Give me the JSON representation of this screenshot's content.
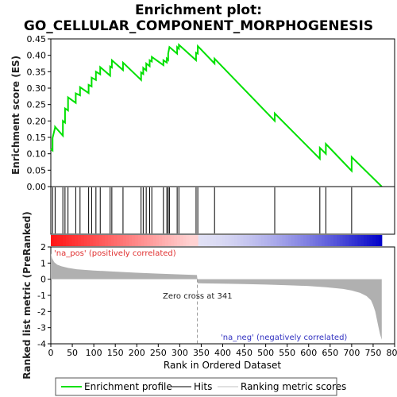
{
  "chart_data": {
    "type": "line",
    "title_line1": "Enrichment plot:",
    "title_line2": "GO_CELLULAR_COMPONENT_MORPHOGENESIS",
    "xlabel": "Rank in Ordered Dataset",
    "ylabel_top": "Enrichment score (ES)",
    "ylabel_bottom": "Ranked list metric (PreRanked)",
    "xlim": [
      0,
      800
    ],
    "es_ylim": [
      0,
      0.45
    ],
    "metric_ylim": [
      -4,
      2
    ],
    "x_ticks": [
      0,
      50,
      100,
      150,
      200,
      250,
      300,
      350,
      400,
      450,
      500,
      550,
      600,
      650,
      700,
      750,
      800
    ],
    "es_ticks": [
      "0.00",
      "0.05",
      "0.10",
      "0.15",
      "0.20",
      "0.25",
      "0.30",
      "0.35",
      "0.40",
      "0.45"
    ],
    "metric_ticks": [
      2,
      1,
      0,
      -1,
      -2,
      -3,
      -4
    ],
    "hits": [
      4,
      10,
      28,
      33,
      40,
      58,
      68,
      88,
      95,
      105,
      115,
      138,
      142,
      168,
      210,
      215,
      222,
      230,
      235,
      262,
      270,
      273,
      276,
      294,
      298,
      338,
      342,
      381,
      521,
      626,
      640,
      700
    ],
    "es_curve": {
      "x": [
        0,
        4,
        4,
        10,
        10,
        28,
        28,
        33,
        33,
        40,
        40,
        58,
        58,
        68,
        68,
        88,
        88,
        95,
        95,
        105,
        105,
        115,
        115,
        138,
        138,
        142,
        142,
        168,
        168,
        210,
        210,
        215,
        215,
        222,
        222,
        230,
        230,
        235,
        235,
        262,
        262,
        270,
        270,
        273,
        273,
        276,
        276,
        294,
        294,
        298,
        298,
        338,
        338,
        342,
        342,
        381,
        381,
        521,
        521,
        626,
        626,
        640,
        640,
        700,
        700,
        770
      ],
      "y": [
        0.115,
        0.11,
        0.148,
        0.18,
        0.182,
        0.155,
        0.2,
        0.195,
        0.238,
        0.232,
        0.272,
        0.255,
        0.284,
        0.278,
        0.303,
        0.285,
        0.31,
        0.305,
        0.332,
        0.325,
        0.35,
        0.342,
        0.364,
        0.338,
        0.366,
        0.363,
        0.385,
        0.355,
        0.378,
        0.325,
        0.348,
        0.343,
        0.362,
        0.354,
        0.375,
        0.367,
        0.385,
        0.381,
        0.395,
        0.37,
        0.385,
        0.378,
        0.39,
        0.386,
        0.405,
        0.425,
        0.425,
        0.405,
        0.425,
        0.42,
        0.432,
        0.385,
        0.408,
        0.405,
        0.428,
        0.375,
        0.39,
        0.2,
        0.223,
        0.085,
        0.118,
        0.1,
        0.13,
        0.048,
        0.09,
        0
      ]
    },
    "metric": {
      "x": [
        0,
        3,
        8,
        15,
        25,
        40,
        60,
        100,
        150,
        200,
        250,
        300,
        340,
        341,
        342,
        400,
        450,
        500,
        550,
        600,
        640,
        680,
        700,
        720,
        735,
        745,
        750,
        755,
        758,
        762,
        766,
        770
      ],
      "y": [
        1.6,
        1.3,
        1.05,
        0.9,
        0.8,
        0.7,
        0.62,
        0.54,
        0.47,
        0.4,
        0.35,
        0.3,
        0.26,
        0.0,
        -0.25,
        -0.27,
        -0.3,
        -0.33,
        -0.37,
        -0.42,
        -0.5,
        -0.6,
        -0.7,
        -0.85,
        -1.05,
        -1.3,
        -1.6,
        -2.0,
        -2.4,
        -2.9,
        -3.4,
        -3.75
      ]
    },
    "zero_cross_rank": 341,
    "annotations": {
      "pos": "'na_pos' (positively correlated)",
      "neg": "'na_neg' (negatively correlated)",
      "zero": "Zero cross at 341"
    },
    "legend": {
      "placement": "bottom",
      "items": [
        {
          "label": "Enrichment profile",
          "color": "#00e000"
        },
        {
          "label": "Hits",
          "color": "#000000"
        },
        {
          "label": "Ranking metric scores",
          "color": "#c0c0c0"
        }
      ]
    },
    "colors": {
      "es_line": "#00e000",
      "hits": "#000000",
      "metric_fill": "#b0b0b0",
      "pos_strong": "#ff0000",
      "neg_strong": "#0000ff"
    }
  }
}
